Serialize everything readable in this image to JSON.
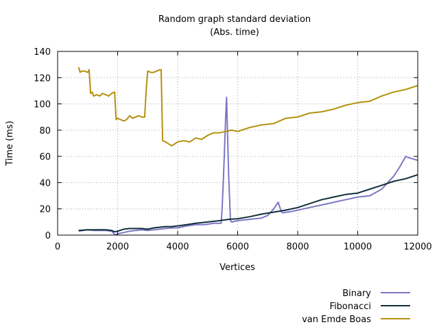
{
  "chart_data": {
    "type": "line",
    "title": "Random graph standard deviation",
    "subtitle": "(Abs. time)",
    "xlabel": "Vertices",
    "ylabel": "Time (ms)",
    "xlim": [
      0,
      12000
    ],
    "ylim": [
      0,
      140
    ],
    "xticks": [
      0,
      2000,
      4000,
      6000,
      8000,
      10000,
      12000
    ],
    "yticks": [
      0,
      20,
      40,
      60,
      80,
      100,
      120,
      140
    ],
    "grid": true,
    "legend_position": "below-right",
    "series": [
      {
        "name": "Binary",
        "color": "#7b76c4",
        "x": [
          700,
          1000,
          1200,
          1400,
          1600,
          1800,
          1900,
          1950,
          2000,
          2200,
          2400,
          2600,
          2800,
          3000,
          3200,
          3400,
          3600,
          3800,
          4000,
          4300,
          4600,
          4900,
          5200,
          5450,
          5480,
          5520,
          5560,
          5600,
          5630,
          5660,
          5700,
          5760,
          5800,
          6000,
          6400,
          6800,
          7000,
          7200,
          7350,
          7450,
          7500,
          7800,
          8200,
          8600,
          9000,
          9400,
          9800,
          10000,
          10400,
          10800,
          11000,
          11200,
          11400,
          11600,
          11700,
          12000
        ],
        "values": [
          3,
          4,
          3.5,
          3.5,
          3.5,
          3,
          0.5,
          0.5,
          1,
          2,
          3,
          3.5,
          4,
          3.5,
          4,
          4.5,
          5,
          5.5,
          5.5,
          7,
          8,
          8,
          9,
          9,
          20,
          40,
          65,
          90,
          105,
          80,
          45,
          11,
          10,
          11,
          12,
          13,
          15,
          20,
          25,
          18,
          17,
          18,
          20,
          22,
          24,
          26,
          28,
          29,
          30,
          35,
          40,
          45,
          52,
          60,
          59,
          57
        ]
      },
      {
        "name": "Fibonacci",
        "color": "#0f2e3a",
        "x": [
          700,
          1000,
          1300,
          1600,
          1800,
          1900,
          2000,
          2200,
          2400,
          2600,
          2800,
          3000,
          3200,
          3400,
          3600,
          3800,
          4000,
          4300,
          4600,
          5000,
          5400,
          5700,
          6000,
          6400,
          6800,
          7200,
          7600,
          8000,
          8400,
          8800,
          9200,
          9600,
          10000,
          10400,
          10800,
          11200,
          11600,
          12000
        ],
        "values": [
          3.5,
          4,
          4,
          4,
          3.5,
          2.5,
          3,
          4.5,
          5,
          5,
          5,
          4.5,
          5.5,
          6,
          6.5,
          6.5,
          7,
          8,
          9,
          10,
          11,
          12,
          12.5,
          14,
          16,
          17.5,
          19,
          21,
          24,
          27,
          29,
          31,
          32,
          35,
          38,
          41,
          43,
          46
        ]
      },
      {
        "name": "van Emde Boas",
        "color": "#b5900b",
        "x": [
          700,
          750,
          800,
          900,
          1000,
          1050,
          1100,
          1150,
          1200,
          1300,
          1400,
          1500,
          1600,
          1700,
          1800,
          1900,
          1950,
          2000,
          2100,
          2200,
          2300,
          2400,
          2500,
          2600,
          2700,
          2800,
          2900,
          2950,
          3000,
          3100,
          3200,
          3300,
          3400,
          3450,
          3500,
          3600,
          3800,
          4000,
          4200,
          4400,
          4600,
          4800,
          5000,
          5200,
          5400,
          5600,
          5800,
          6000,
          6400,
          6800,
          7200,
          7600,
          8000,
          8400,
          8800,
          9200,
          9600,
          10000,
          10400,
          10800,
          11200,
          11600,
          12000
        ],
        "values": [
          128,
          124,
          125,
          125,
          124,
          126,
          108,
          109,
          106,
          107,
          106,
          108,
          107,
          106,
          108,
          109,
          88,
          89,
          88,
          87,
          88,
          91,
          89,
          90,
          91,
          90,
          90,
          110,
          125,
          124,
          124,
          125,
          126,
          126,
          72,
          71,
          68,
          71,
          72,
          71,
          74,
          73,
          76,
          78,
          78,
          79,
          80,
          79,
          82,
          84,
          85,
          89,
          90,
          93,
          94,
          96,
          99,
          101,
          102,
          106,
          109,
          111,
          114
        ]
      }
    ]
  }
}
